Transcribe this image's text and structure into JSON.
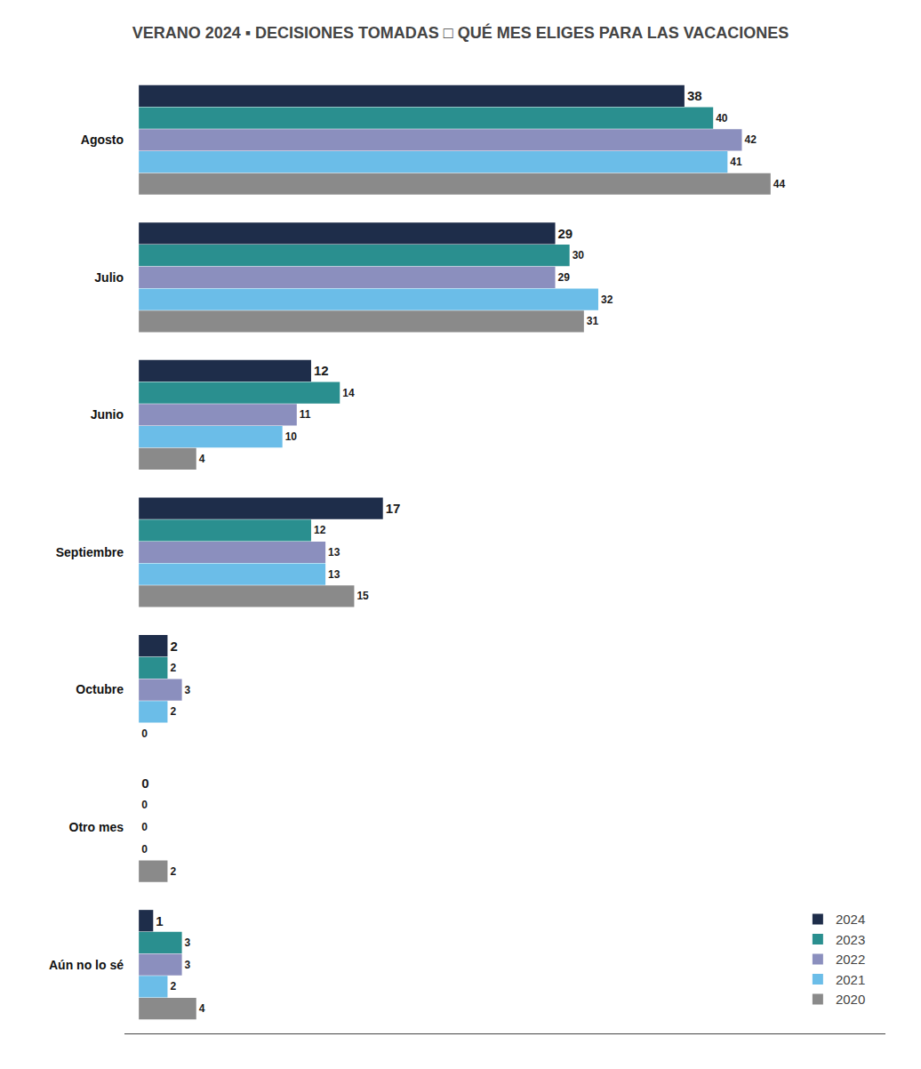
{
  "chart_data": {
    "type": "bar",
    "orientation": "horizontal",
    "title": "VERANO 2024 ▪ DECISIONES TOMADAS □ QUÉ MES ELIGES PARA LAS VACACIONES",
    "categories": [
      "Agosto",
      "Julio",
      "Junio",
      "Septiembre",
      "Octubre",
      "Otro mes",
      "Aún no lo sé"
    ],
    "series": [
      {
        "name": "2024",
        "color": "#1e2d4a",
        "values": [
          38,
          29,
          12,
          17,
          2,
          0,
          1
        ]
      },
      {
        "name": "2023",
        "color": "#2a8f8f",
        "values": [
          40,
          30,
          14,
          12,
          2,
          0,
          3
        ]
      },
      {
        "name": "2022",
        "color": "#8b8fbe",
        "values": [
          42,
          29,
          11,
          13,
          3,
          0,
          3
        ]
      },
      {
        "name": "2021",
        "color": "#6bbde8",
        "values": [
          41,
          32,
          10,
          13,
          2,
          0,
          2
        ]
      },
      {
        "name": "2020",
        "color": "#8a8a8a",
        "values": [
          44,
          31,
          4,
          15,
          0,
          2,
          4
        ]
      }
    ],
    "xlim": [
      -1,
      52
    ],
    "data_labels": true,
    "tick_labels": "y",
    "grid": false,
    "legend": "lower right"
  }
}
